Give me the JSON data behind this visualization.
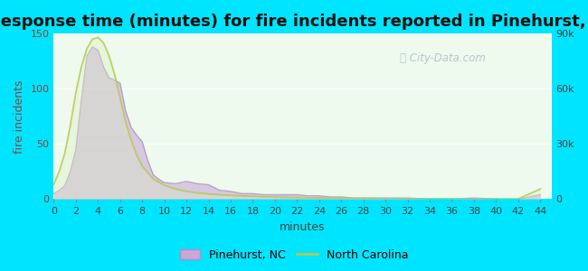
{
  "title": "Response time (minutes) for fire incidents reported in Pinehurst, NC",
  "xlabel": "minutes",
  "ylabel_left": "fire incidents",
  "background_color": "#00e5ff",
  "plot_bg_color": "#edfaed",
  "x_ticks": [
    0,
    2,
    4,
    6,
    8,
    10,
    12,
    14,
    16,
    18,
    20,
    22,
    24,
    26,
    28,
    30,
    32,
    34,
    36,
    38,
    40,
    42,
    44
  ],
  "xlim": [
    0,
    45
  ],
  "ylim_left": [
    0,
    150
  ],
  "ylim_right": [
    0,
    90000
  ],
  "yticks_left": [
    0,
    50,
    100,
    150
  ],
  "yticks_right": [
    0,
    30000,
    60000,
    90000
  ],
  "ytick_labels_right": [
    "0",
    "30k",
    "60k",
    "90k"
  ],
  "pinehurst_x": [
    0,
    0.5,
    1,
    1.5,
    2,
    2.5,
    3,
    3.5,
    4,
    4.5,
    5,
    5.5,
    6,
    6.5,
    7,
    7.5,
    8,
    8.5,
    9,
    9.5,
    10,
    11,
    12,
    13,
    14,
    15,
    16,
    17,
    18,
    19,
    20,
    21,
    22,
    23,
    24,
    25,
    26,
    27,
    28,
    29,
    30,
    32,
    34,
    36,
    38,
    40,
    42,
    44
  ],
  "pinehurst_y": [
    5,
    8,
    12,
    25,
    45,
    90,
    130,
    138,
    135,
    120,
    110,
    108,
    105,
    80,
    65,
    58,
    52,
    35,
    22,
    18,
    15,
    14,
    16,
    14,
    13,
    8,
    7,
    5,
    5,
    4,
    4,
    4,
    4,
    3,
    3,
    2,
    2,
    1,
    1,
    1,
    1,
    1,
    0,
    0,
    1,
    0,
    0,
    4
  ],
  "nc_x": [
    0,
    0.5,
    1,
    1.5,
    2,
    2.5,
    3,
    3.5,
    4,
    4.5,
    5,
    5.5,
    6,
    6.5,
    7,
    7.5,
    8,
    9,
    10,
    11,
    12,
    13,
    14,
    15,
    16,
    18,
    20,
    22,
    24,
    26,
    28,
    30,
    32,
    34,
    36,
    38,
    40,
    42,
    44
  ],
  "nc_y": [
    8000,
    15000,
    25000,
    40000,
    58000,
    72000,
    82000,
    87000,
    88000,
    85000,
    78000,
    68000,
    55000,
    42000,
    32000,
    24000,
    18000,
    11000,
    7500,
    5500,
    4200,
    3400,
    2800,
    2400,
    2000,
    1500,
    1100,
    850,
    650,
    500,
    400,
    320,
    270,
    230,
    200,
    170,
    140,
    110,
    5500
  ],
  "pinehurst_fill_color": "#c8a8d8",
  "pinehurst_line_color": "#b090c0",
  "nc_fill_color": "#d8f0c0",
  "nc_line_color": "#b8c850",
  "watermark_text": "City-Data.com",
  "watermark_color": "#a8c0c8",
  "legend_pinehurst": "Pinehurst, NC",
  "legend_nc": "North Carolina",
  "title_fontsize": 13,
  "axis_fontsize": 9,
  "label_fontsize": 9,
  "ylabel_color": "#884444"
}
